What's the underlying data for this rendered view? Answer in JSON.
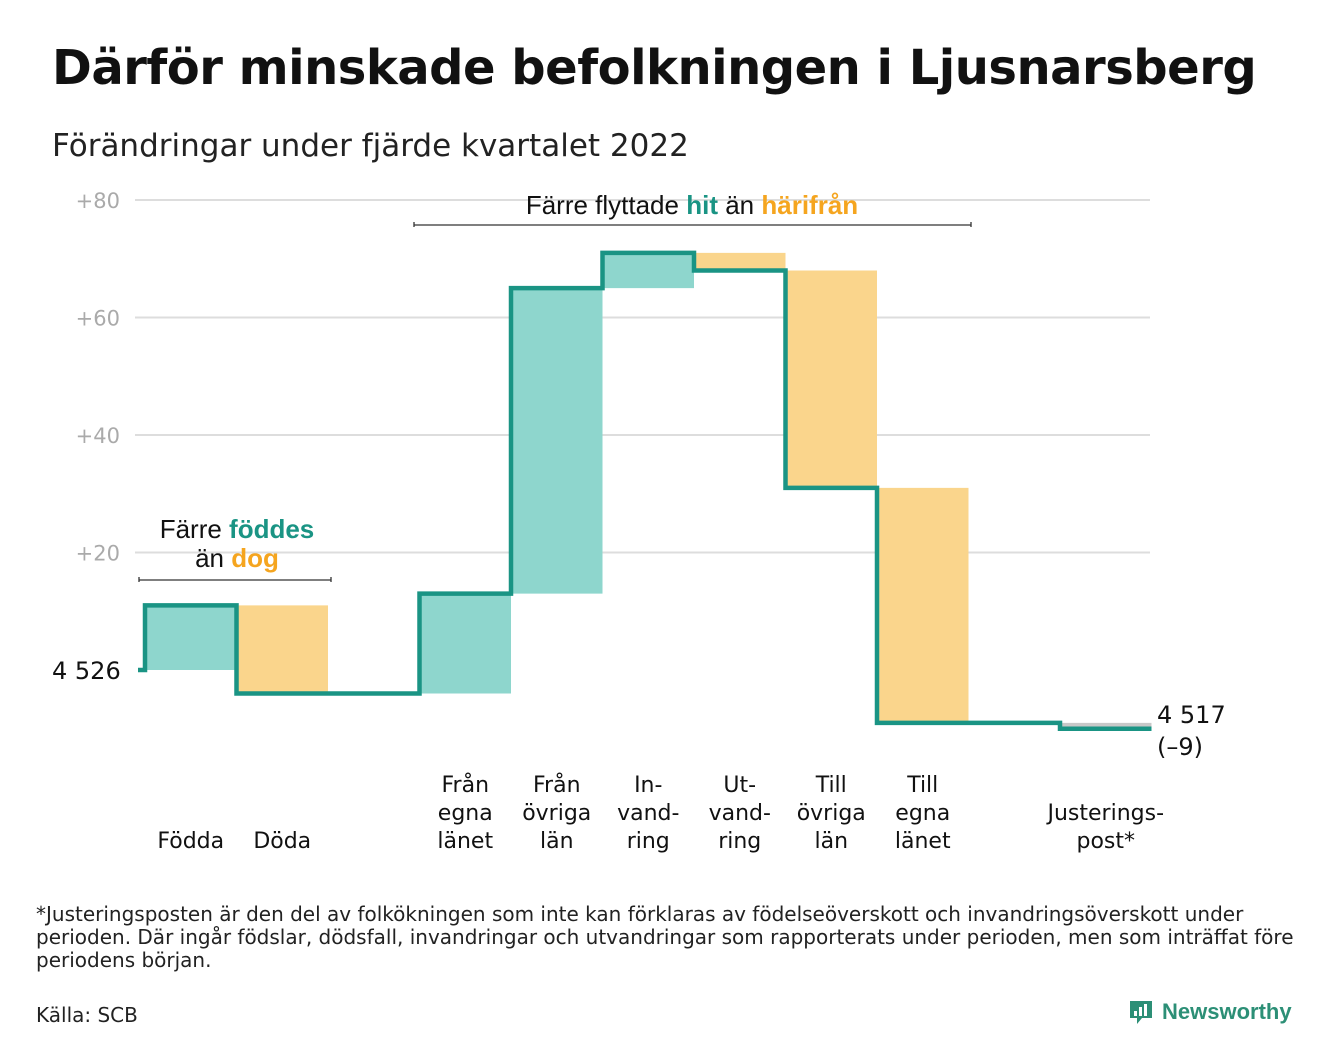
{
  "title": "Därför minskade befolkningen i Ljusnarsberg",
  "subtitle": "Förändringar under fjärde kvartalet 2022",
  "chart_data": {
    "type": "waterfall",
    "start_value": 4526,
    "start_label": "4 526",
    "end_value": 4517,
    "end_label": "4 517",
    "end_change_label": "(–9)",
    "y_ticks": [
      "+80",
      "+60",
      "+40",
      "+20"
    ],
    "y_tick_values": [
      80,
      60,
      40,
      20
    ],
    "ylim": [
      -12,
      84
    ],
    "steps": [
      {
        "label": [
          "Födda"
        ],
        "change": 11,
        "kind": "in"
      },
      {
        "label": [
          "Döda"
        ],
        "change": -15,
        "kind": "out"
      },
      {
        "label": [],
        "change": 0,
        "kind": "none"
      },
      {
        "label": [
          "Från",
          "egna",
          "länet"
        ],
        "change": 17,
        "kind": "in"
      },
      {
        "label": [
          "Från",
          "övriga",
          "län"
        ],
        "change": 52,
        "kind": "in"
      },
      {
        "label": [
          "In-",
          "vand-",
          "ring"
        ],
        "change": 6,
        "kind": "in"
      },
      {
        "label": [
          "Ut-",
          "vand-",
          "ring"
        ],
        "change": -3,
        "kind": "out"
      },
      {
        "label": [
          "Till",
          "övriga",
          "län"
        ],
        "change": -37,
        "kind": "out"
      },
      {
        "label": [
          "Till",
          "egna",
          "länet"
        ],
        "change": -40,
        "kind": "out"
      },
      {
        "label": [],
        "change": 0,
        "kind": "none"
      },
      {
        "label": [
          "Justerings-",
          "post*"
        ],
        "change": -1,
        "kind": "adj"
      }
    ],
    "annotations": {
      "births": {
        "line1": "Färre ",
        "line1_em": "föddes",
        "line2": "än ",
        "line2_em": "dog"
      },
      "moves": {
        "text1": "Färre flyttade ",
        "em1": "hit",
        "text2": " än ",
        "em2": "härifrån"
      }
    },
    "colors": {
      "in_fill": "#8ed6cd",
      "out_fill": "#fad58c",
      "adj_fill": "#c8c8c8",
      "line": "#1a9484",
      "teal_text": "#1a9484",
      "orange_text": "#f5a51f",
      "grid": "#dddddd",
      "tick_text": "#aaaaaa"
    },
    "grid": true
  },
  "footnote": "*Justeringsposten är den del av folkökningen som inte kan förklaras av födelseöverskott och invandringsöverskott under perioden. Där ingår födslar, dödsfall, invandringar och utvandringar som rapporterats under perioden, men som inträffat före periodens början.",
  "source": "Källa: SCB",
  "brand": {
    "name": "Newsworthy",
    "icon": "newsworthy-logo-icon"
  }
}
